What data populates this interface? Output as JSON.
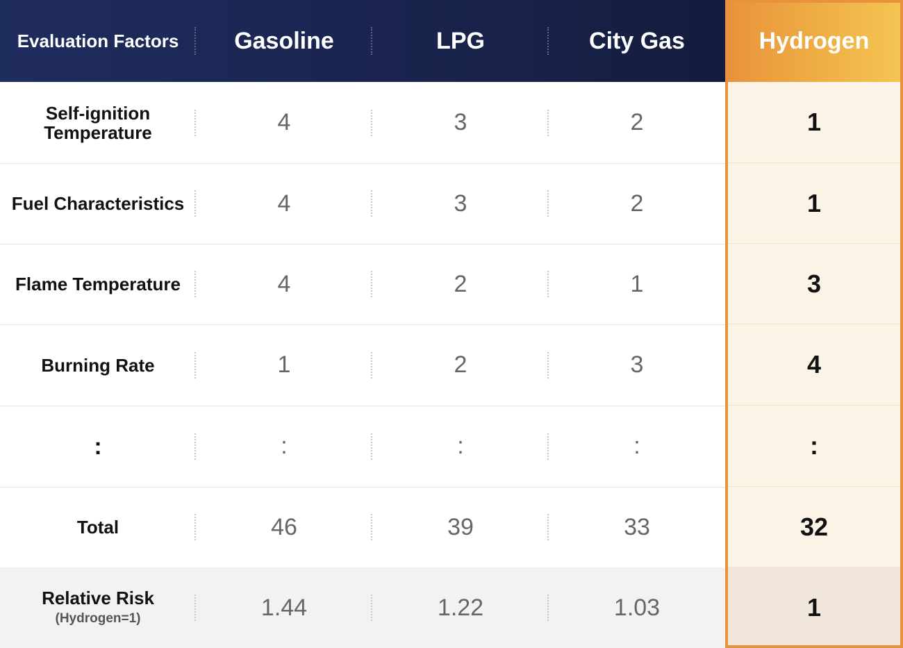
{
  "header": {
    "factor_label": "Evaluation Factors",
    "columns": [
      "Gasoline",
      "LPG",
      "City Gas",
      "Hydrogen"
    ]
  },
  "rows": [
    {
      "label_line1": "Self-ignition",
      "label_line2": "Temperature",
      "values": [
        "4",
        "3",
        "2",
        "1"
      ]
    },
    {
      "label": "Fuel Characteristics",
      "values": [
        "4",
        "3",
        "2",
        "1"
      ]
    },
    {
      "label": "Flame Temperature",
      "values": [
        "4",
        "2",
        "1",
        "3"
      ]
    },
    {
      "label": "Burning Rate",
      "values": [
        "1",
        "2",
        "3",
        "4"
      ]
    },
    {
      "label": ":",
      "values": [
        ":",
        ":",
        ":",
        ":"
      ]
    },
    {
      "label": "Total",
      "values": [
        "46",
        "39",
        "33",
        "32"
      ]
    }
  ],
  "relative_risk": {
    "label": "Relative Risk",
    "sublabel": "(Hydrogen=1)",
    "values": [
      "1.44",
      "1.22",
      "1.03",
      "1"
    ]
  },
  "colors": {
    "header_navy": "#1f2c5e",
    "hydrogen_orange": "#e8923c",
    "hydrogen_highlight": "#fcf3e7"
  }
}
